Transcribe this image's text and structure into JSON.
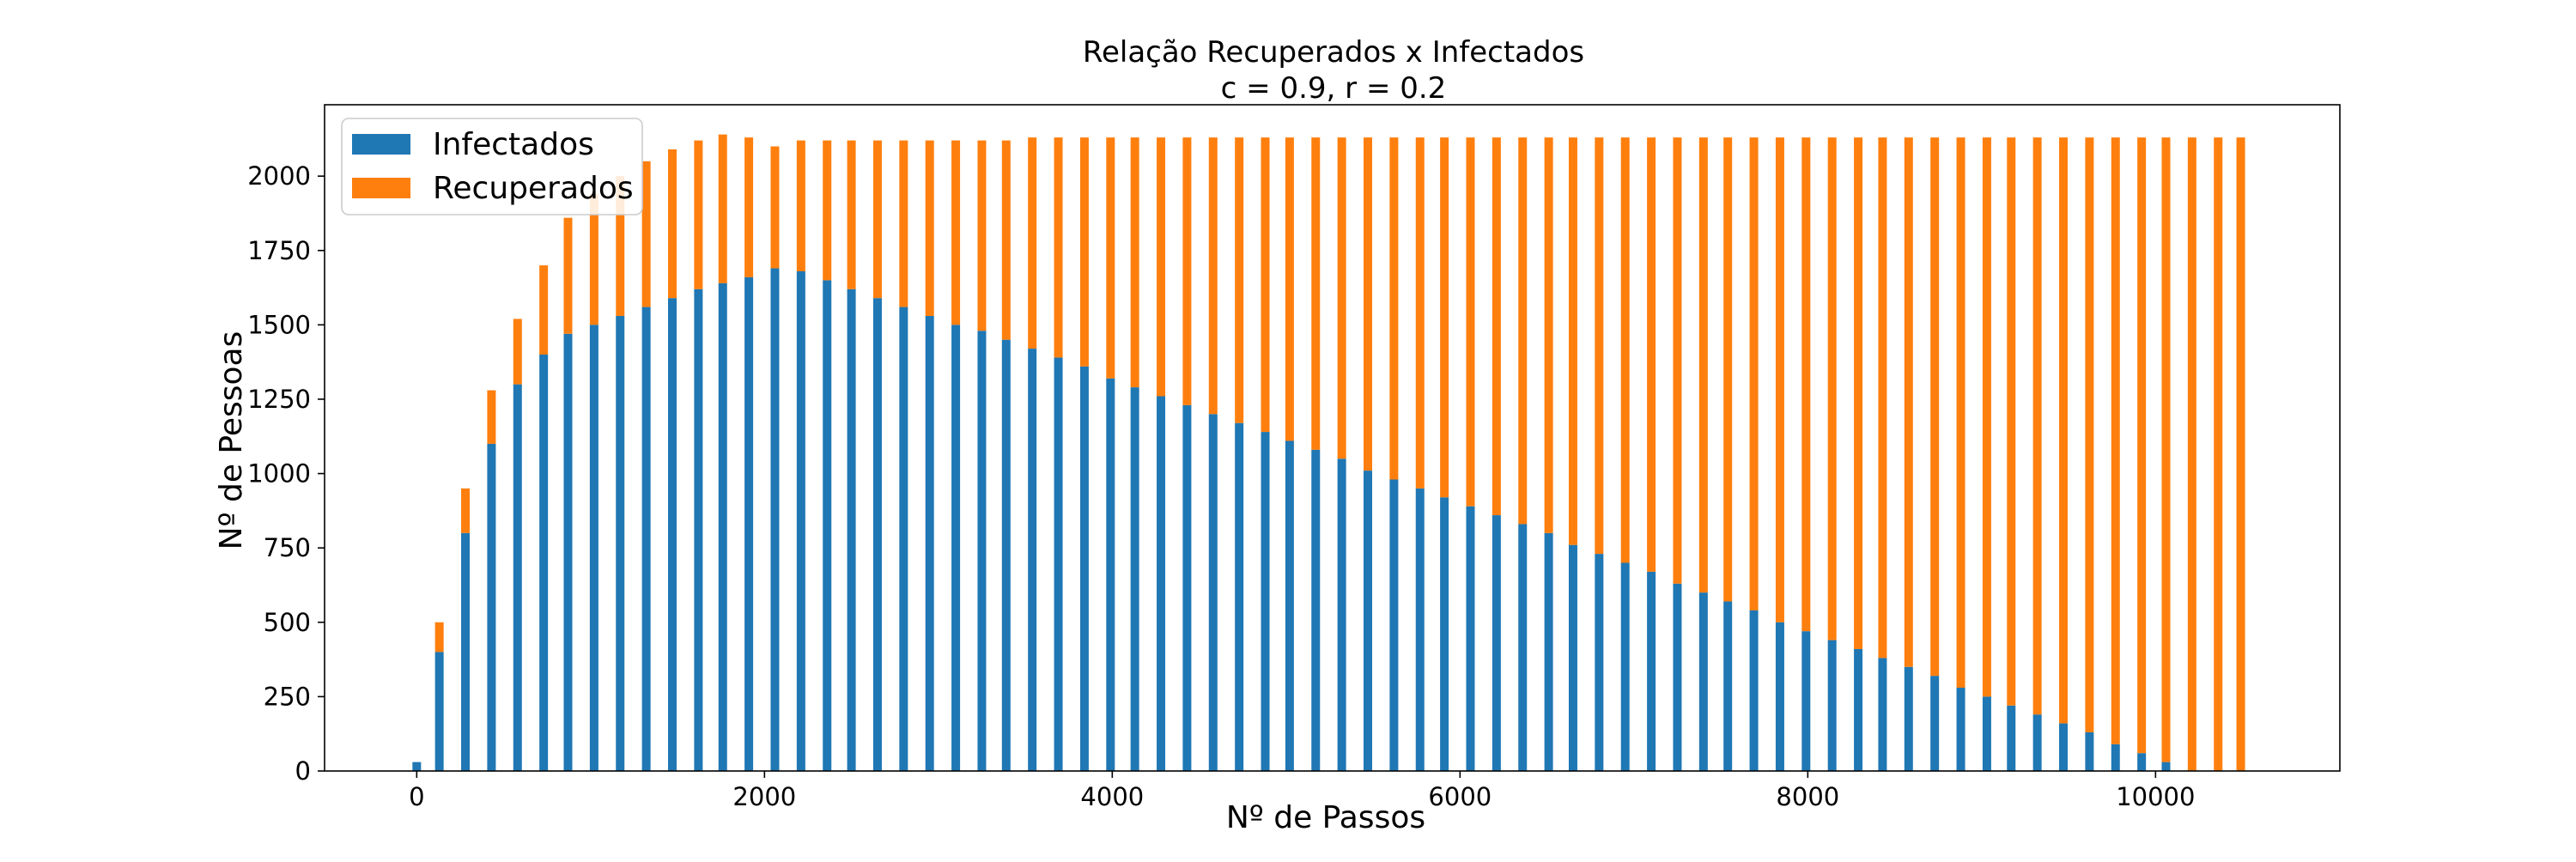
{
  "chart_data": {
    "type": "bar",
    "stacked": true,
    "title": "Relação Recuperados x Infectados",
    "subtitle": "c = 0.9, r = 0.2",
    "xlabel": "Nº de Passos",
    "ylabel": "Nº de Pessoas",
    "xlim": [
      -530,
      11060
    ],
    "ylim": [
      0,
      2240
    ],
    "xticks": [
      0,
      2000,
      4000,
      6000,
      8000,
      10000
    ],
    "yticks": [
      0,
      250,
      500,
      750,
      1000,
      1250,
      1500,
      1750,
      2000
    ],
    "legend_position": "upper-left",
    "series": [
      {
        "name": "Infectados",
        "color": "#1f77b4"
      },
      {
        "name": "Recuperados",
        "color": "#ff7f0e"
      }
    ],
    "x": [
      0,
      130,
      280,
      430,
      580,
      730,
      870,
      1020,
      1170,
      1320,
      1470,
      1620,
      1760,
      1910,
      2060,
      2210,
      2360,
      2500,
      2650,
      2800,
      2950,
      3100,
      3250,
      3390,
      3540,
      3690,
      3840,
      3990,
      4130,
      4280,
      4430,
      4580,
      4730,
      4880,
      5020,
      5170,
      5320,
      5470,
      5620,
      5770,
      5910,
      6060,
      6210,
      6360,
      6510,
      6650,
      6800,
      6950,
      7100,
      7250,
      7400,
      7540,
      7690,
      7840,
      7990,
      8140,
      8290,
      8430,
      8580,
      8730,
      8880,
      9030,
      9170,
      9320,
      9470,
      9620,
      9770,
      9920,
      10060,
      10210,
      10360,
      10490
    ],
    "infectados": [
      30,
      400,
      800,
      1100,
      1300,
      1400,
      1470,
      1500,
      1530,
      1560,
      1590,
      1620,
      1640,
      1660,
      1690,
      1680,
      1650,
      1620,
      1590,
      1560,
      1530,
      1500,
      1480,
      1450,
      1420,
      1390,
      1360,
      1320,
      1290,
      1260,
      1230,
      1200,
      1170,
      1140,
      1110,
      1080,
      1050,
      1010,
      980,
      950,
      920,
      890,
      860,
      830,
      800,
      760,
      730,
      700,
      670,
      630,
      600,
      570,
      540,
      500,
      470,
      440,
      410,
      380,
      350,
      320,
      280,
      250,
      220,
      190,
      160,
      130,
      90,
      60,
      30,
      0,
      0,
      0
    ],
    "recuperados": [
      0,
      100,
      150,
      180,
      220,
      300,
      390,
      440,
      470,
      490,
      500,
      500,
      500,
      470,
      410,
      440,
      470,
      500,
      530,
      560,
      590,
      620,
      640,
      670,
      710,
      740,
      770,
      810,
      840,
      870,
      900,
      930,
      960,
      990,
      1020,
      1050,
      1080,
      1120,
      1150,
      1180,
      1210,
      1240,
      1270,
      1300,
      1330,
      1370,
      1400,
      1430,
      1460,
      1500,
      1530,
      1560,
      1590,
      1630,
      1660,
      1690,
      1720,
      1750,
      1780,
      1810,
      1850,
      1880,
      1910,
      1940,
      1970,
      2000,
      2040,
      2070,
      2100,
      2130,
      2130,
      2130
    ]
  }
}
